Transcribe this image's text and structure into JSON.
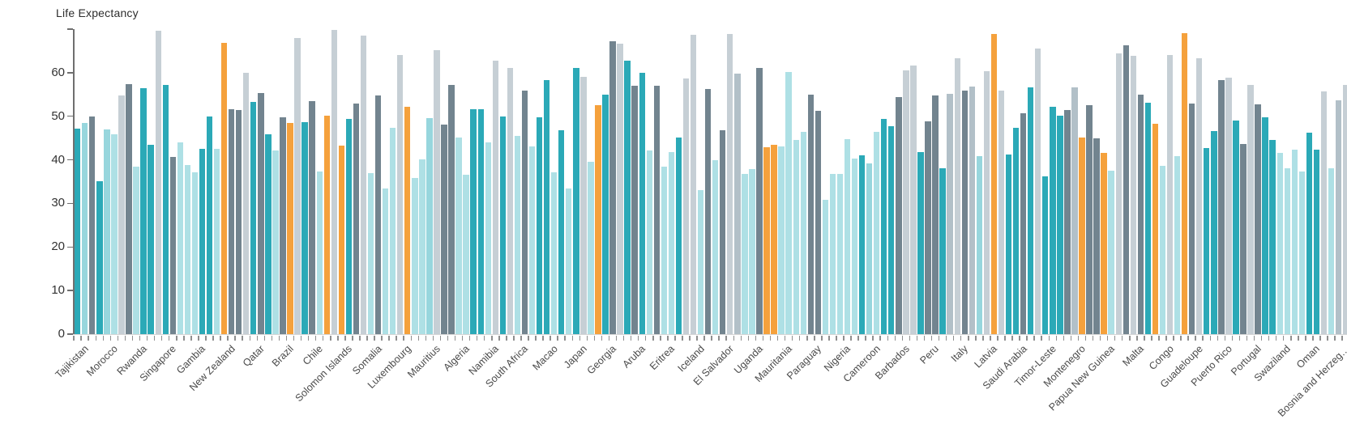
{
  "chart_data": {
    "type": "bar",
    "title": "Life Expectancy",
    "xlabel": "",
    "ylabel": "",
    "ylim": [
      0,
      70
    ],
    "yticks": [
      0,
      10,
      20,
      30,
      40,
      50,
      60
    ],
    "grid": false,
    "legend": false,
    "label_every_n_bars": 4,
    "palette": {
      "t": "#2BA9B7",
      "c": "#97D6DD",
      "p": "#AEE0E5",
      "s": "#72848F",
      "b": "#B2C0C8",
      "g": "#C6CFD5",
      "o": "#F5A13C"
    },
    "axis_colors": {
      "y_axis_line": "#6f6f6f",
      "x_baseline": "#d4d4d4",
      "x_tick": "#8f8f8f",
      "y_label": "#333333",
      "x_label": "#4a4a4a"
    },
    "categories": [
      "Tajikistan",
      "Morocco",
      "Rwanda",
      "Singapore",
      "Gambia",
      "New Zealand",
      "Qatar",
      "Brazil",
      "Chile",
      "Solomon Islands",
      "Somalia",
      "Luxembourg",
      "Mauritius",
      "Algeria",
      "Namibia",
      "South Africa",
      "Macao",
      "Japan",
      "Georgia",
      "Aruba",
      "Eritrea",
      "Iceland",
      "El Salvador",
      "Uganda",
      "Mauritania",
      "Paraguay",
      "Nigeria",
      "Cameroon",
      "Barbados",
      "Peru",
      "Italy",
      "Latvia",
      "Saudi Arabia",
      "Timor-Leste",
      "Montenegro",
      "Papua New Guinea",
      "Malta",
      "Congo",
      "Guadeloupe",
      "Puerto Rico",
      "Portugal",
      "Swaziland",
      "Oman",
      "Bosnia and Herzeg…"
    ],
    "bars": [
      {
        "v": 47.2,
        "c": "t"
      },
      {
        "v": 48.5,
        "c": "c"
      },
      {
        "v": 50.0,
        "c": "s"
      },
      {
        "v": 35.1,
        "c": "t"
      },
      {
        "v": 47.0,
        "c": "c"
      },
      {
        "v": 45.8,
        "c": "p"
      },
      {
        "v": 54.7,
        "c": "g"
      },
      {
        "v": 57.4,
        "c": "s"
      },
      {
        "v": 38.5,
        "c": "p"
      },
      {
        "v": 56.4,
        "c": "t"
      },
      {
        "v": 43.4,
        "c": "t"
      },
      {
        "v": 69.7,
        "c": "g"
      },
      {
        "v": 57.1,
        "c": "t"
      },
      {
        "v": 40.6,
        "c": "s"
      },
      {
        "v": 44.0,
        "c": "p"
      },
      {
        "v": 38.8,
        "c": "p"
      },
      {
        "v": 37.1,
        "c": "p"
      },
      {
        "v": 42.5,
        "c": "t"
      },
      {
        "v": 50.0,
        "c": "t"
      },
      {
        "v": 42.6,
        "c": "p"
      },
      {
        "v": 66.8,
        "c": "o"
      },
      {
        "v": 51.6,
        "c": "s"
      },
      {
        "v": 51.4,
        "c": "s"
      },
      {
        "v": 59.9,
        "c": "g"
      },
      {
        "v": 53.2,
        "c": "t"
      },
      {
        "v": 55.4,
        "c": "s"
      },
      {
        "v": 45.8,
        "c": "t"
      },
      {
        "v": 42.1,
        "c": "p"
      },
      {
        "v": 49.7,
        "c": "s"
      },
      {
        "v": 48.5,
        "c": "o"
      },
      {
        "v": 68.0,
        "c": "g"
      },
      {
        "v": 48.6,
        "c": "t"
      },
      {
        "v": 53.5,
        "c": "s"
      },
      {
        "v": 37.4,
        "c": "p"
      },
      {
        "v": 50.2,
        "c": "o"
      },
      {
        "v": 69.8,
        "c": "g"
      },
      {
        "v": 43.2,
        "c": "o"
      },
      {
        "v": 49.3,
        "c": "t"
      },
      {
        "v": 52.9,
        "c": "s"
      },
      {
        "v": 68.5,
        "c": "g"
      },
      {
        "v": 37.0,
        "c": "p"
      },
      {
        "v": 54.8,
        "c": "s"
      },
      {
        "v": 33.4,
        "c": "p"
      },
      {
        "v": 47.4,
        "c": "p"
      },
      {
        "v": 64.1,
        "c": "g"
      },
      {
        "v": 52.2,
        "c": "o"
      },
      {
        "v": 35.9,
        "c": "p"
      },
      {
        "v": 40.1,
        "c": "p"
      },
      {
        "v": 49.6,
        "c": "c"
      },
      {
        "v": 65.1,
        "c": "g"
      },
      {
        "v": 48.0,
        "c": "s"
      },
      {
        "v": 57.2,
        "c": "s"
      },
      {
        "v": 45.2,
        "c": "p"
      },
      {
        "v": 36.6,
        "c": "p"
      },
      {
        "v": 51.7,
        "c": "t"
      },
      {
        "v": 51.7,
        "c": "t"
      },
      {
        "v": 44.0,
        "c": "p"
      },
      {
        "v": 62.8,
        "c": "g"
      },
      {
        "v": 50.0,
        "c": "t"
      },
      {
        "v": 61.0,
        "c": "g"
      },
      {
        "v": 45.4,
        "c": "p"
      },
      {
        "v": 55.9,
        "c": "s"
      },
      {
        "v": 43.0,
        "c": "p"
      },
      {
        "v": 49.7,
        "c": "t"
      },
      {
        "v": 58.3,
        "c": "t"
      },
      {
        "v": 37.1,
        "c": "p"
      },
      {
        "v": 46.8,
        "c": "t"
      },
      {
        "v": 33.5,
        "c": "p"
      },
      {
        "v": 61.0,
        "c": "t"
      },
      {
        "v": 59.0,
        "c": "g"
      },
      {
        "v": 39.5,
        "c": "p"
      },
      {
        "v": 52.5,
        "c": "o"
      },
      {
        "v": 55.0,
        "c": "t"
      },
      {
        "v": 67.3,
        "c": "s"
      },
      {
        "v": 66.6,
        "c": "g"
      },
      {
        "v": 62.7,
        "c": "t"
      },
      {
        "v": 57.0,
        "c": "s"
      },
      {
        "v": 59.9,
        "c": "t"
      },
      {
        "v": 42.1,
        "c": "p"
      },
      {
        "v": 57.0,
        "c": "s"
      },
      {
        "v": 38.5,
        "c": "p"
      },
      {
        "v": 41.7,
        "c": "p"
      },
      {
        "v": 45.2,
        "c": "t"
      },
      {
        "v": 58.7,
        "c": "g"
      },
      {
        "v": 68.7,
        "c": "g"
      },
      {
        "v": 33.1,
        "c": "p"
      },
      {
        "v": 56.2,
        "c": "s"
      },
      {
        "v": 40.0,
        "c": "p"
      },
      {
        "v": 46.8,
        "c": "s"
      },
      {
        "v": 68.8,
        "c": "g"
      },
      {
        "v": 59.8,
        "c": "b"
      },
      {
        "v": 36.8,
        "c": "p"
      },
      {
        "v": 37.8,
        "c": "p"
      },
      {
        "v": 61.0,
        "c": "s"
      },
      {
        "v": 42.8,
        "c": "o"
      },
      {
        "v": 43.5,
        "c": "o"
      },
      {
        "v": 43.0,
        "c": "p"
      },
      {
        "v": 60.2,
        "c": "p"
      },
      {
        "v": 44.5,
        "c": "p"
      },
      {
        "v": 46.4,
        "c": "p"
      },
      {
        "v": 54.9,
        "c": "s"
      },
      {
        "v": 51.3,
        "c": "s"
      },
      {
        "v": 30.8,
        "c": "p"
      },
      {
        "v": 36.7,
        "c": "p"
      },
      {
        "v": 36.8,
        "c": "p"
      },
      {
        "v": 44.8,
        "c": "p"
      },
      {
        "v": 40.3,
        "c": "p"
      },
      {
        "v": 41.0,
        "c": "t"
      },
      {
        "v": 39.2,
        "c": "c"
      },
      {
        "v": 46.5,
        "c": "p"
      },
      {
        "v": 49.3,
        "c": "t"
      },
      {
        "v": 47.7,
        "c": "t"
      },
      {
        "v": 54.4,
        "c": "s"
      },
      {
        "v": 60.5,
        "c": "g"
      },
      {
        "v": 61.7,
        "c": "g"
      },
      {
        "v": 41.8,
        "c": "t"
      },
      {
        "v": 48.9,
        "c": "s"
      },
      {
        "v": 54.7,
        "c": "s"
      },
      {
        "v": 38.0,
        "c": "t"
      },
      {
        "v": 55.1,
        "c": "b"
      },
      {
        "v": 63.4,
        "c": "g"
      },
      {
        "v": 55.9,
        "c": "s"
      },
      {
        "v": 56.9,
        "c": "b"
      },
      {
        "v": 40.9,
        "c": "c"
      },
      {
        "v": 60.3,
        "c": "g"
      },
      {
        "v": 68.8,
        "c": "o"
      },
      {
        "v": 55.9,
        "c": "g"
      },
      {
        "v": 41.3,
        "c": "t"
      },
      {
        "v": 47.4,
        "c": "t"
      },
      {
        "v": 50.6,
        "c": "s"
      },
      {
        "v": 56.7,
        "c": "t"
      },
      {
        "v": 65.6,
        "c": "g"
      },
      {
        "v": 36.2,
        "c": "t"
      },
      {
        "v": 52.1,
        "c": "t"
      },
      {
        "v": 50.1,
        "c": "t"
      },
      {
        "v": 51.4,
        "c": "s"
      },
      {
        "v": 56.7,
        "c": "b"
      },
      {
        "v": 45.1,
        "c": "o"
      },
      {
        "v": 52.5,
        "c": "s"
      },
      {
        "v": 45.0,
        "c": "s"
      },
      {
        "v": 41.5,
        "c": "o"
      },
      {
        "v": 37.5,
        "c": "p"
      },
      {
        "v": 64.5,
        "c": "g"
      },
      {
        "v": 66.3,
        "c": "s"
      },
      {
        "v": 63.9,
        "c": "g"
      },
      {
        "v": 55.0,
        "c": "s"
      },
      {
        "v": 53.1,
        "c": "t"
      },
      {
        "v": 48.2,
        "c": "o"
      },
      {
        "v": 38.7,
        "c": "p"
      },
      {
        "v": 64.0,
        "c": "g"
      },
      {
        "v": 40.8,
        "c": "p"
      },
      {
        "v": 69.1,
        "c": "o"
      },
      {
        "v": 52.9,
        "c": "s"
      },
      {
        "v": 63.3,
        "c": "g"
      },
      {
        "v": 42.7,
        "c": "t"
      },
      {
        "v": 46.6,
        "c": "t"
      },
      {
        "v": 58.3,
        "c": "s"
      },
      {
        "v": 58.8,
        "c": "g"
      },
      {
        "v": 49.1,
        "c": "t"
      },
      {
        "v": 43.6,
        "c": "s"
      },
      {
        "v": 57.2,
        "c": "g"
      },
      {
        "v": 52.8,
        "c": "s"
      },
      {
        "v": 49.7,
        "c": "t"
      },
      {
        "v": 44.6,
        "c": "t"
      },
      {
        "v": 41.6,
        "c": "p"
      },
      {
        "v": 38.0,
        "c": "p"
      },
      {
        "v": 42.3,
        "c": "p"
      },
      {
        "v": 37.3,
        "c": "p"
      },
      {
        "v": 46.3,
        "c": "t"
      },
      {
        "v": 42.4,
        "c": "t"
      },
      {
        "v": 55.7,
        "c": "g"
      },
      {
        "v": 38.0,
        "c": "p"
      },
      {
        "v": 53.7,
        "c": "b"
      },
      {
        "v": 57.1,
        "c": "g"
      }
    ]
  }
}
